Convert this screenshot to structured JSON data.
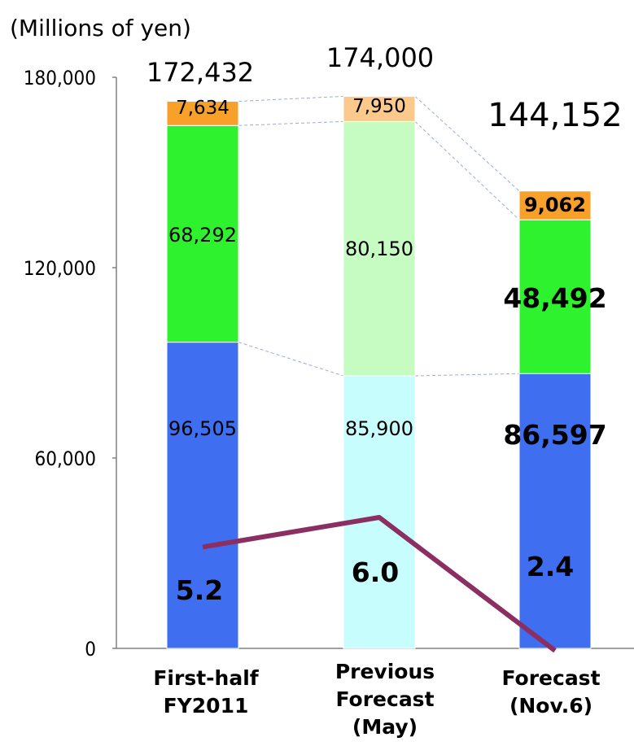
{
  "unit_label": "(Millions of yen)",
  "chart_data": {
    "type": "bar",
    "stacked": true,
    "categories": [
      [
        "First-half",
        "FY2011"
      ],
      [
        "Previous",
        "Forecast",
        "(May)"
      ],
      [
        "Forecast",
        "(Nov.6)"
      ]
    ],
    "ylim": [
      0,
      180000
    ],
    "yticks": [
      0,
      60000,
      120000,
      180000
    ],
    "ytick_labels": [
      "0",
      "60,000",
      "120,000",
      "180,000"
    ],
    "totals": [
      172432,
      174000,
      144152
    ],
    "total_labels": [
      "172,432",
      "174,000",
      "144,152"
    ],
    "series": [
      {
        "values": [
          96505,
          85900,
          86597
        ],
        "labels": [
          "96,505",
          "85,900",
          "86,597"
        ],
        "colors": [
          "#3f6ef0",
          "#c8fdfd",
          "#3f6ef0"
        ]
      },
      {
        "values": [
          68292,
          80150,
          48492
        ],
        "labels": [
          "68,292",
          "80,150",
          "48,492"
        ],
        "colors": [
          "#2ff22f",
          "#c6fcc2",
          "#2ff22f"
        ]
      },
      {
        "values": [
          7634,
          7950,
          9062
        ],
        "labels": [
          "7,634",
          "7,950",
          "9,062"
        ],
        "colors": [
          "#f7a12a",
          "#fcc98d",
          "#f7a12a"
        ]
      }
    ],
    "line": {
      "values": [
        5.2,
        6.0,
        2.4
      ],
      "labels": [
        "5.2",
        "6.0",
        "2.4"
      ],
      "color": "#8b2f63"
    }
  }
}
